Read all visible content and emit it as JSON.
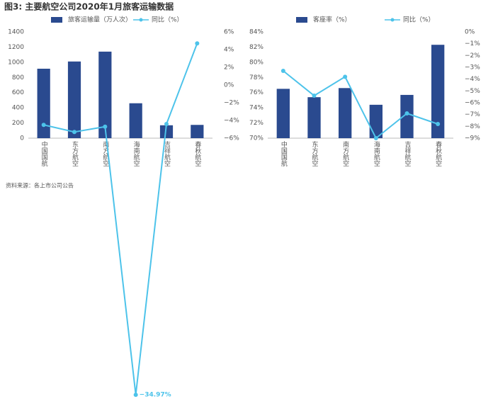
{
  "title": "图3: 主要航空公司2020年1月旅客运输数据",
  "source": "资料来源：各上市公司公告",
  "chart_data": [
    {
      "type": "bar",
      "categories": [
        "中国国航",
        "东方航空",
        "南方航空",
        "海南航空",
        "吉祥航空",
        "春秋航空"
      ],
      "series": [
        {
          "name": "旅客运输量（万人次）",
          "type": "bar",
          "color": "#2a4a8f",
          "values": [
            915,
            1010,
            1140,
            460,
            170,
            175
          ]
        },
        {
          "name": "同比（%）",
          "type": "line",
          "axis": "y2",
          "color": "#4dc3ea",
          "values": [
            -4.5,
            -5.3,
            -4.7,
            -34.97,
            -4.4,
            4.7
          ],
          "value_labels": [
            null,
            null,
            null,
            "−34.97%",
            null,
            null
          ]
        }
      ],
      "ylim": [
        0,
        1400
      ],
      "yticks": [
        0,
        200,
        400,
        600,
        800,
        1000,
        1200,
        1400
      ],
      "y2lim": [
        -6,
        6
      ],
      "y2ticks": [
        {
          "value": -6,
          "label": "−6%"
        },
        {
          "value": -4,
          "label": "−4%"
        },
        {
          "value": -2,
          "label": "−2%"
        },
        {
          "value": 0,
          "label": "0%"
        },
        {
          "value": 2,
          "label": "2%"
        },
        {
          "value": 4,
          "label": "4%"
        },
        {
          "value": 6,
          "label": "6%"
        }
      ],
      "grid": false
    },
    {
      "type": "bar",
      "categories": [
        "中国国航",
        "东方航空",
        "南方航空",
        "海南航空",
        "吉祥航空",
        "春秋航空"
      ],
      "series": [
        {
          "name": "客座率（%）",
          "type": "bar",
          "color": "#2a4a8f",
          "values": [
            76.5,
            75.4,
            76.6,
            74.4,
            75.7,
            82.3
          ]
        },
        {
          "name": "同比（%）",
          "type": "line",
          "axis": "y2",
          "color": "#4dc3ea",
          "values": [
            -3.3,
            -5.4,
            -3.8,
            -9.0,
            -6.9,
            -7.8
          ]
        }
      ],
      "ylim": [
        70,
        84
      ],
      "yticks": [
        {
          "value": 70,
          "label": "70%"
        },
        {
          "value": 72,
          "label": "72%"
        },
        {
          "value": 74,
          "label": "74%"
        },
        {
          "value": 76,
          "label": "76%"
        },
        {
          "value": 78,
          "label": "78%"
        },
        {
          "value": 80,
          "label": "80%"
        },
        {
          "value": 82,
          "label": "82%"
        },
        {
          "value": 84,
          "label": "84%"
        }
      ],
      "y2lim": [
        -9,
        0
      ],
      "y2ticks": [
        {
          "value": -9,
          "label": "−9%"
        },
        {
          "value": -8,
          "label": "−8%"
        },
        {
          "value": -7,
          "label": "−7%"
        },
        {
          "value": -6,
          "label": "−6%"
        },
        {
          "value": -5,
          "label": "−5%"
        },
        {
          "value": -4,
          "label": "−4%"
        },
        {
          "value": -3,
          "label": "−3%"
        },
        {
          "value": -2,
          "label": "−2%"
        },
        {
          "value": -1,
          "label": "−1%"
        },
        {
          "value": 0,
          "label": "0%"
        }
      ],
      "grid": false
    }
  ]
}
